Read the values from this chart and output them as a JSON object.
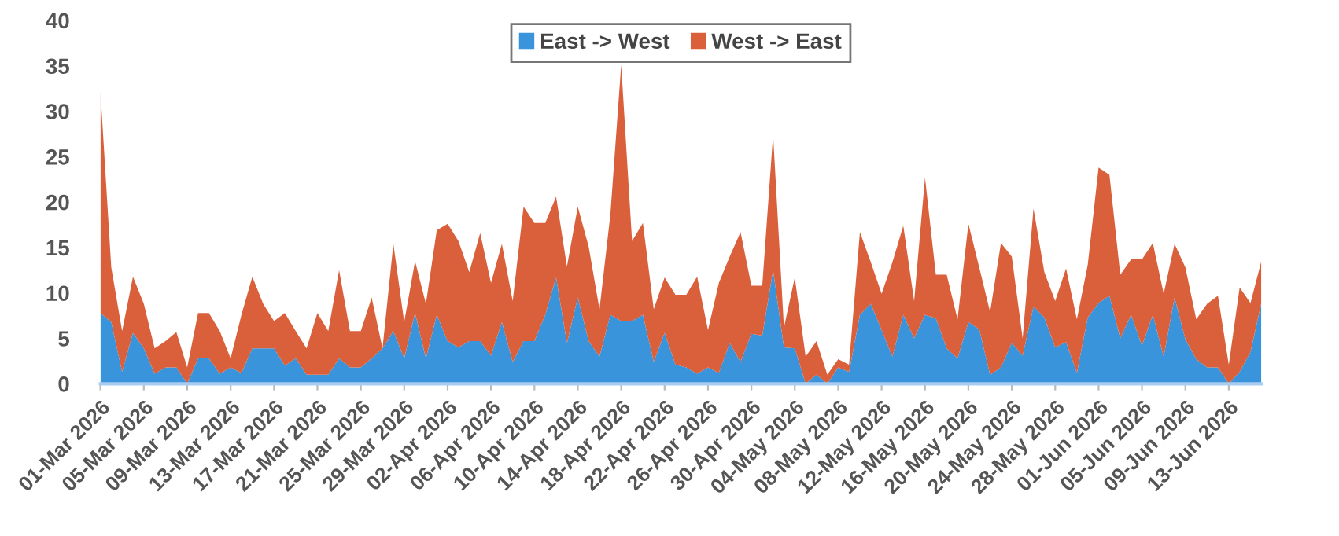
{
  "chart_data": {
    "type": "area",
    "stacked": true,
    "x": [
      "2026-03-01",
      "2026-03-02",
      "2026-03-03",
      "2026-03-04",
      "2026-03-05",
      "2026-03-06",
      "2026-03-07",
      "2026-03-08",
      "2026-03-09",
      "2026-03-10",
      "2026-03-11",
      "2026-03-12",
      "2026-03-13",
      "2026-03-14",
      "2026-03-15",
      "2026-03-16",
      "2026-03-17",
      "2026-03-18",
      "2026-03-19",
      "2026-03-20",
      "2026-03-21",
      "2026-03-22",
      "2026-03-23",
      "2026-03-24",
      "2026-03-25",
      "2026-03-26",
      "2026-03-27",
      "2026-03-28",
      "2026-03-29",
      "2026-03-30",
      "2026-03-31",
      "2026-04-01",
      "2026-04-02",
      "2026-04-03",
      "2026-04-04",
      "2026-04-05",
      "2026-04-06",
      "2026-04-07",
      "2026-04-08",
      "2026-04-09",
      "2026-04-10",
      "2026-04-11",
      "2026-04-12",
      "2026-04-13",
      "2026-04-14",
      "2026-04-15",
      "2026-04-16",
      "2026-04-17",
      "2026-04-18",
      "2026-04-19",
      "2026-04-20",
      "2026-04-21",
      "2026-04-22",
      "2026-04-23",
      "2026-04-24",
      "2026-04-25",
      "2026-04-26",
      "2026-04-27",
      "2026-04-28",
      "2026-04-29",
      "2026-04-30",
      "2026-05-01",
      "2026-05-02",
      "2026-05-03",
      "2026-05-04",
      "2026-05-05",
      "2026-05-06",
      "2026-05-07",
      "2026-05-08",
      "2026-05-09",
      "2026-05-10",
      "2026-05-11",
      "2026-05-12",
      "2026-05-13",
      "2026-05-14",
      "2026-05-15",
      "2026-05-16",
      "2026-05-17",
      "2026-05-18",
      "2026-05-19",
      "2026-05-20",
      "2026-05-21",
      "2026-05-22",
      "2026-05-23",
      "2026-05-24",
      "2026-05-25",
      "2026-05-26",
      "2026-05-27",
      "2026-05-28",
      "2026-05-29",
      "2026-05-30",
      "2026-05-31",
      "2026-06-01",
      "2026-06-02",
      "2026-06-03",
      "2026-06-04",
      "2026-06-05",
      "2026-06-06",
      "2026-06-07",
      "2026-06-08",
      "2026-06-09",
      "2026-06-10",
      "2026-06-11",
      "2026-06-12",
      "2026-06-13",
      "2026-06-14",
      "2026-06-15",
      "2026-06-16"
    ],
    "series": [
      {
        "name": "East -> West",
        "color": "#3a94dc",
        "values": [
          7.8,
          6.8,
          1.3,
          5.6,
          3.9,
          1.1,
          1.8,
          1.8,
          0,
          2.8,
          2.8,
          1.1,
          1.8,
          1.2,
          3.9,
          3.9,
          3.9,
          2.0,
          2.8,
          1,
          1,
          1,
          2.8,
          1.8,
          1.8,
          2.8,
          3.9,
          5.8,
          2.8,
          7.8,
          2.8,
          7.6,
          4.7,
          4.0,
          4.7,
          4.7,
          3.1,
          6.8,
          2.4,
          4.7,
          4.7,
          7.6,
          11.7,
          4.5,
          9.5,
          4.7,
          3.0,
          7.6,
          6.9,
          6.9,
          7.6,
          2.4,
          5.6,
          2.1,
          1.8,
          1.1,
          1.8,
          1.2,
          4.5,
          2.4,
          5.5,
          5.3,
          12.5,
          4.0,
          3.9,
          0,
          1.0,
          0,
          1.8,
          1.3,
          7.6,
          8.8,
          5.9,
          3.0,
          7.6,
          5.0,
          7.6,
          7.2,
          3.9,
          2.8,
          6.8,
          6.0,
          1.0,
          1.8,
          4.5,
          3.1,
          8.5,
          7.3,
          4.0,
          4.6,
          1.2,
          7.3,
          8.9,
          9.7,
          5.0,
          7.6,
          4.2,
          7.6,
          3.0,
          9.5,
          4.9,
          2.7,
          1.8,
          1.8,
          0,
          1.3,
          3.5,
          8.9
        ]
      },
      {
        "name": "West -> East",
        "color": "#d9603b",
        "values": [
          24.4,
          6,
          4.5,
          6.2,
          4.9,
          2.8,
          2.9,
          3.9,
          1.8,
          5,
          5,
          4.7,
          1,
          6.4,
          7.9,
          4.9,
          3,
          5.8,
          3,
          2.9,
          6.8,
          4.8,
          9.7,
          4,
          4,
          6.7,
          0,
          9.6,
          4,
          5.7,
          6,
          9.3,
          12.9,
          11.7,
          7.6,
          11.9,
          8,
          8.6,
          6.7,
          14.8,
          13,
          10.1,
          8.9,
          8.4,
          10,
          10.4,
          5.2,
          11,
          28.2,
          8.8,
          10.1,
          5.8,
          6.1,
          7.7,
          8,
          10.7,
          4.1,
          9.9,
          9.5,
          14.3,
          5.3,
          5.5,
          14.9,
          2.2,
          7.8,
          3,
          3.7,
          1,
          0.9,
          0.8,
          9.1,
          4.6,
          4,
          10.4,
          9.8,
          4.1,
          15.1,
          4.8,
          8.1,
          4.3,
          10.8,
          6.8,
          6.9,
          13.7,
          9.5,
          1.9,
          10.8,
          5,
          5.1,
          8.1,
          5.9,
          5.8,
          14.9,
          13.3,
          7,
          6.1,
          9.5,
          7.9,
          6.9,
          5.9,
          7.9,
          4.4,
          7,
          7.9,
          2.1,
          9.3,
          5.4,
          4.6
        ]
      }
    ],
    "xlim": [
      "2026-03-01",
      "2026-06-16"
    ],
    "xticks": [
      {
        "value": "2026-03-01",
        "label": "01-Mar 2026"
      },
      {
        "value": "2026-03-05",
        "label": "05-Mar 2026"
      },
      {
        "value": "2026-03-09",
        "label": "09-Mar 2026"
      },
      {
        "value": "2026-03-13",
        "label": "13-Mar 2026"
      },
      {
        "value": "2026-03-17",
        "label": "17-Mar 2026"
      },
      {
        "value": "2026-03-21",
        "label": "21-Mar 2026"
      },
      {
        "value": "2026-03-25",
        "label": "25-Mar 2026"
      },
      {
        "value": "2026-03-29",
        "label": "29-Mar 2026"
      },
      {
        "value": "2026-04-02",
        "label": "02-Apr 2026"
      },
      {
        "value": "2026-04-06",
        "label": "06-Apr 2026"
      },
      {
        "value": "2026-04-10",
        "label": "10-Apr 2026"
      },
      {
        "value": "2026-04-14",
        "label": "14-Apr 2026"
      },
      {
        "value": "2026-04-18",
        "label": "18-Apr 2026"
      },
      {
        "value": "2026-04-22",
        "label": "22-Apr 2026"
      },
      {
        "value": "2026-04-26",
        "label": "26-Apr 2026"
      },
      {
        "value": "2026-04-30",
        "label": "30-Apr 2026"
      },
      {
        "value": "2026-05-04",
        "label": "04-May 2026"
      },
      {
        "value": "2026-05-08",
        "label": "08-May 2026"
      },
      {
        "value": "2026-05-12",
        "label": "12-May 2026"
      },
      {
        "value": "2026-05-16",
        "label": "16-May 2026"
      },
      {
        "value": "2026-05-20",
        "label": "20-May 2026"
      },
      {
        "value": "2026-05-24",
        "label": "24-May 2026"
      },
      {
        "value": "2026-05-28",
        "label": "28-May 2026"
      },
      {
        "value": "2026-06-01",
        "label": "01-Jun 2026"
      },
      {
        "value": "2026-06-05",
        "label": "05-Jun 2026"
      },
      {
        "value": "2026-06-09",
        "label": "09-Jun 2026"
      },
      {
        "value": "2026-06-13",
        "label": "13-Jun 2026"
      }
    ],
    "ylim": [
      0,
      40
    ],
    "yticks": [
      0,
      5,
      10,
      15,
      20,
      25,
      30,
      35,
      40
    ],
    "grid": false,
    "legend": "top"
  }
}
